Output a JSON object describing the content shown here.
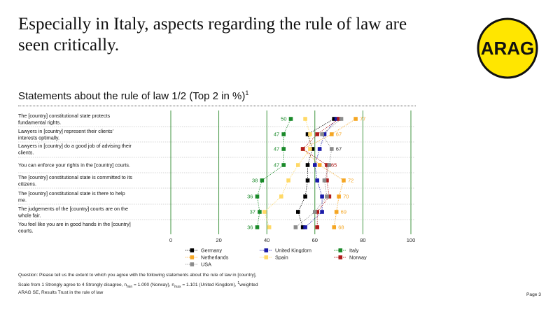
{
  "slide": {
    "title": "Especially in Italy, aspects regarding the rule of law are seen critically.",
    "logo_text": "ARAG",
    "subtitle": "Statements about the rule of law 1/2 (Top 2 in %)",
    "subtitle_sup": "1",
    "question_line1": "Question: Please tell us the extent to which you agree with the following statements about the rule of law in [country],",
    "question_line2_a": "Scale from 1 Strongly agree to 4 Strongly disagree, n",
    "question_line2_sub1": "min",
    "question_line2_b": " = 1.000 (Norway), n",
    "question_line2_sub2": "max",
    "question_line2_c": " = 1.101 (United Kingdom), ",
    "question_line2_sup": "1",
    "question_line2_d": "weighted",
    "source": "ARAG SE, Results Trust in the rule of law",
    "page": "Page 3"
  },
  "colors": {
    "Germany": "#000000",
    "United Kingdom": "#1a1aa8",
    "Italy": "#1a8a2a",
    "Netherlands": "#f5a623",
    "Spain": "#ffd966",
    "Norway": "#b01c1c",
    "USA": "#8c8c8c",
    "logo_fill": "#ffe600",
    "grid": "#2e8b2e"
  },
  "chart_data": {
    "type": "scatter",
    "title": "Statements about the rule of law 1/2 (Top 2 in %)",
    "xlim": [
      0,
      100
    ],
    "xticks": [
      "0",
      "20",
      "40",
      "60",
      "80",
      "100"
    ],
    "grid": true,
    "legend_position": "bottom",
    "categories": [
      "The [country] constitutional state protects fundamental rights.",
      "Lawyers in [country] represent their clients' interests optimally.",
      "Lawyers in [country] do a good job of advising their clients.",
      "You can enforce your rights in the [country] courts.",
      "The [country] constitutional state is committed to its citizens.",
      "The [country] constitutional state is there to help me.",
      "The judgements of the [country] courts are on the whole fair.",
      "You feel like you are in good hands in the [country] courts."
    ],
    "series": [
      {
        "name": "Germany",
        "values": [
          68,
          57,
          59,
          57,
          57,
          56,
          53,
          55
        ]
      },
      {
        "name": "United Kingdom",
        "values": [
          69,
          64,
          62,
          60,
          61,
          63,
          63,
          56
        ]
      },
      {
        "name": "Italy",
        "values": [
          50,
          47,
          47,
          47,
          38,
          36,
          37,
          36
        ]
      },
      {
        "name": "Netherlands",
        "values": [
          77,
          67,
          55,
          62,
          72,
          70,
          69,
          68
        ]
      },
      {
        "name": "Spain",
        "values": [
          56,
          58,
          58,
          53,
          49,
          46,
          39,
          41
        ]
      },
      {
        "name": "Norway",
        "values": [
          70,
          61,
          55,
          65,
          65,
          66,
          61,
          61
        ]
      },
      {
        "name": "USA",
        "values": [
          71,
          63,
          67,
          66,
          64,
          65,
          60,
          52
        ]
      }
    ],
    "labeled_values": [
      {
        "row": 0,
        "series": "Italy",
        "value": "50",
        "side": "left"
      },
      {
        "row": 0,
        "series": "Netherlands",
        "value": "77",
        "side": "right"
      },
      {
        "row": 1,
        "series": "Italy",
        "value": "47",
        "side": "left"
      },
      {
        "row": 1,
        "series": "Netherlands",
        "value": "67",
        "side": "right"
      },
      {
        "row": 2,
        "series": "Italy",
        "value": "47",
        "side": "left"
      },
      {
        "row": 2,
        "series": "USA",
        "value": "67",
        "side": "right"
      },
      {
        "row": 3,
        "series": "Italy",
        "value": "47",
        "side": "left"
      },
      {
        "row": 3,
        "series": "Norway",
        "value": "65",
        "side": "right"
      },
      {
        "row": 4,
        "series": "Italy",
        "value": "38",
        "side": "left"
      },
      {
        "row": 4,
        "series": "Netherlands",
        "value": "72",
        "side": "right"
      },
      {
        "row": 5,
        "series": "Italy",
        "value": "36",
        "side": "left"
      },
      {
        "row": 5,
        "series": "Netherlands",
        "value": "70",
        "side": "right"
      },
      {
        "row": 6,
        "series": "Italy",
        "value": "37",
        "side": "left"
      },
      {
        "row": 6,
        "series": "Netherlands",
        "value": "69",
        "side": "right"
      },
      {
        "row": 7,
        "series": "Italy",
        "value": "36",
        "side": "left"
      },
      {
        "row": 7,
        "series": "Netherlands",
        "value": "68",
        "side": "right"
      }
    ],
    "legend": [
      "Germany",
      "United Kingdom",
      "Italy",
      "Netherlands",
      "Spain",
      "Norway",
      "USA"
    ]
  }
}
